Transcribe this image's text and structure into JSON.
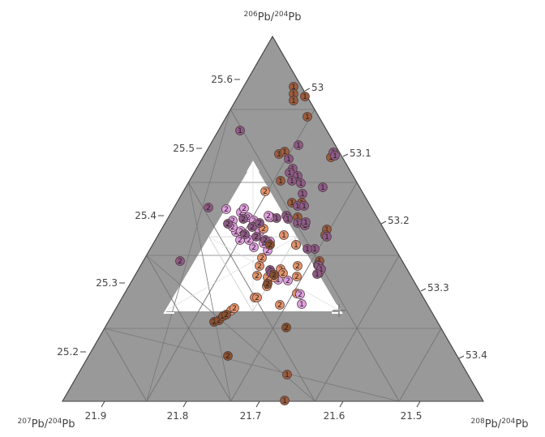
{
  "chart_data": {
    "type": "scatter",
    "subtype": "ternary",
    "axes": {
      "top": {
        "title_parts": [
          {
            "sup": "206"
          },
          {
            "txt": "Pb/"
          },
          {
            "sup": "204"
          },
          {
            "txt": "Pb"
          }
        ],
        "ticks": [
          "25.6",
          "25.5",
          "25.4",
          "25.3",
          "25.2"
        ]
      },
      "right": {
        "title_parts": [
          {
            "sup": "208"
          },
          {
            "txt": "Pb/"
          },
          {
            "sup": "204"
          },
          {
            "txt": "Pb"
          }
        ],
        "ticks": [
          "53",
          "53.1",
          "53.2",
          "53.3",
          "53.4"
        ]
      },
      "left": {
        "title_parts": [
          {
            "sup": "207"
          },
          {
            "txt": "Pb/"
          },
          {
            "sup": "204"
          },
          {
            "txt": "Pb"
          }
        ],
        "ticks": [
          "21.9",
          "21.8",
          "21.7",
          "21.6",
          "21.5"
        ]
      }
    },
    "colors": {
      "background": "#999999",
      "zoom_region": "#ffffff",
      "grid": "#777777",
      "frame": "#444444",
      "group_1_purple": "#8e5a86",
      "group_1_brown": "#9b5c3e",
      "group_2_pink": "#e09fe0",
      "group_2_orange": "#e5936a",
      "group_2_dark": "#8a5030"
    },
    "grid": true,
    "series": [
      {
        "label": "1",
        "color": "#9b5c3e",
        "points": [
          [
            362,
            107
          ],
          [
            362,
            116
          ],
          [
            362,
            124
          ],
          [
            379,
            144
          ],
          [
            344,
            190
          ],
          [
            351,
            187
          ],
          [
            408,
            194
          ],
          [
            346,
            223
          ],
          [
            360,
            250
          ],
          [
            372,
            250
          ],
          [
            367,
            268
          ],
          [
            403,
            283
          ],
          [
            401,
            290
          ],
          [
            365,
            302
          ],
          [
            394,
            322
          ],
          [
            393,
            337
          ],
          [
            354,
            462
          ],
          [
            351,
            494
          ],
          [
            376,
            119
          ]
        ]
      },
      {
        "label": "1",
        "color": "#8e5a86",
        "points": [
          [
            296,
            161
          ],
          [
            368,
            179
          ],
          [
            411,
            188
          ],
          [
            413,
            192
          ],
          [
            356,
            196
          ],
          [
            361,
            208
          ],
          [
            357,
            213
          ],
          [
            367,
            217
          ],
          [
            360,
            223
          ],
          [
            371,
            226
          ],
          [
            398,
            231
          ],
          [
            373,
            239
          ],
          [
            367,
            254
          ],
          [
            375,
            254
          ],
          [
            353,
            266
          ],
          [
            334,
            268
          ],
          [
            341,
            269
          ],
          [
            355,
            270
          ],
          [
            367,
            275
          ],
          [
            376,
            278
          ],
          [
            403,
            292
          ],
          [
            388,
            307
          ],
          [
            379,
            307
          ],
          [
            392,
            327
          ],
          [
            393,
            328
          ],
          [
            396,
            332
          ],
          [
            391,
            338
          ],
          [
            377,
            274
          ]
        ]
      },
      {
        "label": "1",
        "color": "#e09fe0",
        "points": [
          [
            320,
            286
          ],
          [
            326,
            297
          ],
          [
            332,
            268
          ],
          [
            343,
            345
          ],
          [
            372,
            375
          ]
        ]
      },
      {
        "label": "1",
        "color": "#e5936a",
        "points": [
          [
            365,
            302
          ],
          [
            350,
            290
          ],
          [
            331,
            300
          ]
        ]
      },
      {
        "label": "2",
        "color": "#e5936a",
        "points": [
          [
            327,
            236
          ],
          [
            367,
            328
          ],
          [
            366,
            341
          ],
          [
            346,
            332
          ],
          [
            323,
            318
          ],
          [
            338,
            342
          ],
          [
            349,
            337
          ],
          [
            330,
            342
          ],
          [
            320,
            328
          ],
          [
            317,
            340
          ],
          [
            329,
            353
          ],
          [
            314,
            367
          ],
          [
            317,
            367
          ],
          [
            345,
            376
          ],
          [
            285,
            383
          ],
          [
            289,
            380
          ],
          [
            366,
            362
          ],
          [
            325,
            282
          ]
        ]
      },
      {
        "label": "2",
        "color": "#e09fe0",
        "points": [
          [
            279,
            258
          ],
          [
            287,
            272
          ],
          [
            297,
            262
          ],
          [
            301,
            257
          ],
          [
            306,
            268
          ],
          [
            313,
            272
          ],
          [
            291,
            286
          ],
          [
            296,
            296
          ],
          [
            313,
            305
          ],
          [
            330,
            309
          ],
          [
            333,
            298
          ],
          [
            355,
            346
          ],
          [
            370,
            363
          ],
          [
            331,
            266
          ],
          [
            297,
            285
          ],
          [
            307,
            296
          ],
          [
            325,
            300
          ],
          [
            287,
            280
          ]
        ]
      },
      {
        "label": "2",
        "color": "#8e5a86",
        "points": [
          [
            257,
            256
          ],
          [
            222,
            322
          ],
          [
            281,
            276
          ],
          [
            300,
            270
          ],
          [
            311,
            280
          ],
          [
            320,
            275
          ],
          [
            302,
            289
          ],
          [
            316,
            292
          ],
          [
            327,
            296
          ],
          [
            333,
            333
          ],
          [
            335,
            337
          ]
        ]
      },
      {
        "label": "2",
        "color": "#8a5030",
        "points": [
          [
            264,
            397
          ],
          [
            270,
            395
          ],
          [
            275,
            390
          ],
          [
            279,
            388
          ],
          [
            281,
            439
          ],
          [
            353,
            404
          ],
          [
            330,
            350
          ],
          [
            338,
            339
          ],
          [
            333,
            302
          ]
        ]
      }
    ]
  }
}
